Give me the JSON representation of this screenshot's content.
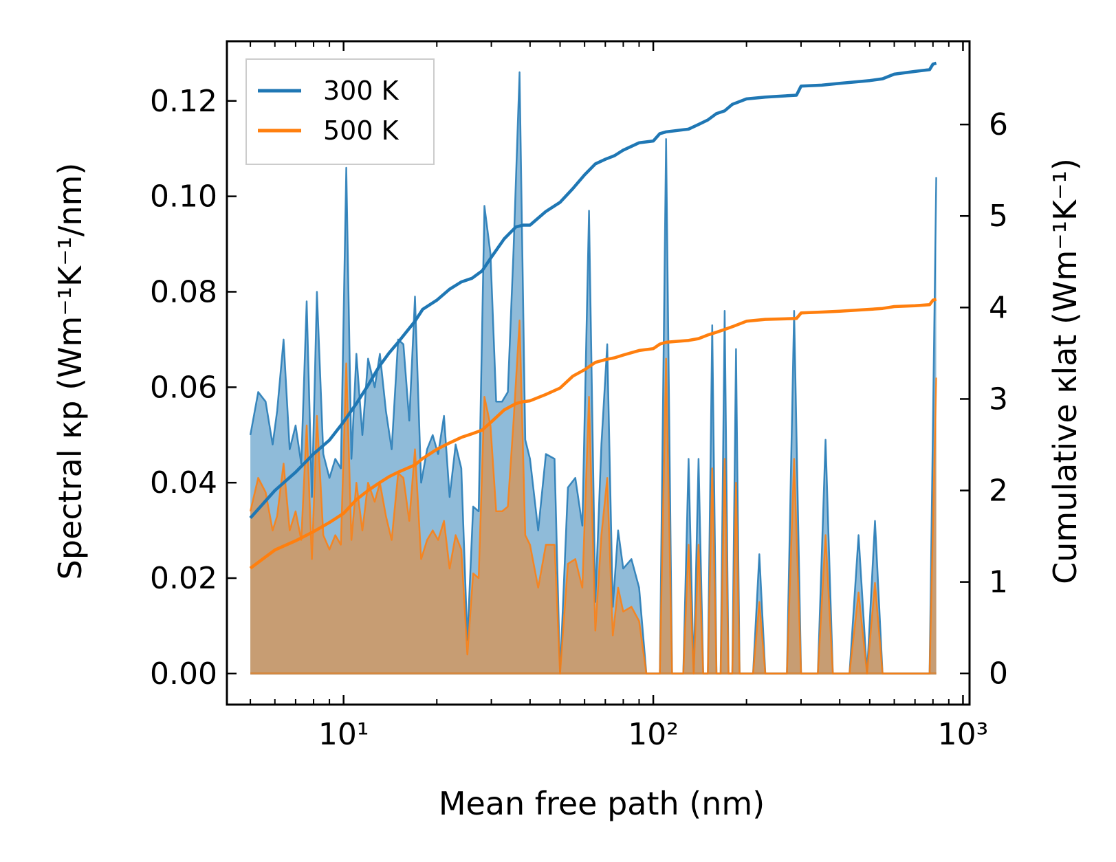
{
  "chart_data": {
    "type": "line",
    "xscale": "log",
    "xlim": [
      4.2,
      1050
    ],
    "ylim_left": [
      -0.0065,
      0.1325
    ],
    "ylim_right": [
      -0.34,
      6.91
    ],
    "xlabel": "Mean free path (nm)",
    "ylabel_left": "Spectral κp (Wm⁻¹K⁻¹/nm)",
    "ylabel_right": "Cumulative κlat (Wm⁻¹K⁻¹)",
    "xticks": [
      {
        "value": 10,
        "label": "10¹"
      },
      {
        "value": 100,
        "label": "10²"
      },
      {
        "value": 1000,
        "label": "10³"
      }
    ],
    "yticks_left": [
      {
        "value": 0.0,
        "label": "0.00"
      },
      {
        "value": 0.02,
        "label": "0.02"
      },
      {
        "value": 0.04,
        "label": "0.04"
      },
      {
        "value": 0.06,
        "label": "0.06"
      },
      {
        "value": 0.08,
        "label": "0.08"
      },
      {
        "value": 0.1,
        "label": "0.10"
      },
      {
        "value": 0.12,
        "label": "0.12"
      }
    ],
    "yticks_right": [
      {
        "value": 0,
        "label": "0"
      },
      {
        "value": 1,
        "label": "1"
      },
      {
        "value": 2,
        "label": "2"
      },
      {
        "value": 3,
        "label": "3"
      },
      {
        "value": 4,
        "label": "4"
      },
      {
        "value": 5,
        "label": "5"
      },
      {
        "value": 6,
        "label": "6"
      }
    ],
    "legend": {
      "position": "top-left",
      "entries": [
        "300 K",
        "500 K"
      ]
    },
    "colors": {
      "300 K": "#1f77b4",
      "500 K": "#ff7f0e",
      "axes": "#000000"
    },
    "spectral": {
      "x": [
        5.0,
        5.3,
        5.6,
        5.9,
        6.1,
        6.4,
        6.7,
        7.0,
        7.3,
        7.6,
        7.9,
        8.2,
        8.6,
        9.0,
        9.4,
        9.8,
        10.2,
        10.6,
        11.0,
        11.5,
        12.0,
        12.6,
        13.1,
        13.7,
        14.3,
        15.0,
        15.6,
        16.3,
        17.0,
        17.8,
        18.6,
        19.4,
        20.2,
        21.1,
        22.0,
        23.0,
        24.0,
        25.1,
        26.2,
        27.3,
        28.5,
        29.8,
        31.1,
        32.5,
        33.9,
        35.4,
        37.0,
        38.6,
        40.0,
        42.5,
        45.0,
        48.0,
        50.0,
        53.0,
        56.0,
        59.0,
        62.0,
        65.0,
        68.0,
        71.0,
        74.0,
        77.0,
        80.0,
        85.0,
        90.0,
        95.0,
        100.0,
        105.0,
        110.0,
        115.0,
        120.0,
        125.0,
        130.0,
        135.0,
        140.0,
        145.0,
        150.0,
        155.0,
        160.0,
        165.0,
        170.0,
        175.0,
        180.0,
        185.0,
        190.0,
        200.0,
        210.0,
        220.0,
        230.0,
        240.0,
        255.0,
        270.0,
        285.0,
        300.0,
        320.0,
        340.0,
        360.0,
        380.0,
        400.0,
        430.0,
        460.0,
        490.0,
        520.0,
        550.0,
        580.0,
        620.0,
        660.0,
        700.0,
        740.0,
        780.0,
        820.0
      ],
      "300 K": [
        0.05,
        0.059,
        0.057,
        0.048,
        0.055,
        0.07,
        0.047,
        0.052,
        0.044,
        0.078,
        0.037,
        0.08,
        0.046,
        0.041,
        0.045,
        0.043,
        0.106,
        0.045,
        0.067,
        0.05,
        0.066,
        0.06,
        0.067,
        0.055,
        0.047,
        0.07,
        0.069,
        0.053,
        0.079,
        0.04,
        0.047,
        0.05,
        0.046,
        0.054,
        0.037,
        0.048,
        0.043,
        0.007,
        0.035,
        0.034,
        0.098,
        0.088,
        0.057,
        0.057,
        0.059,
        0.089,
        0.126,
        0.049,
        0.045,
        0.03,
        0.046,
        0.045,
        0.0,
        0.039,
        0.041,
        0.031,
        0.097,
        0.015,
        0.048,
        0.069,
        0.014,
        0.03,
        0.022,
        0.024,
        0.018,
        0.0,
        0.0,
        0.0,
        0.112,
        0.0,
        0.0,
        0.0,
        0.045,
        0.0,
        0.045,
        0.0,
        0.0,
        0.073,
        0.0,
        0.0,
        0.076,
        0.0,
        0.0,
        0.068,
        0.0,
        0.0,
        0.0,
        0.025,
        0.0,
        0.0,
        0.0,
        0.0,
        0.076,
        0.0,
        0.0,
        0.0,
        0.049,
        0.0,
        0.0,
        0.0,
        0.029,
        0.0,
        0.032,
        0.0,
        0.0,
        0.0,
        0.0,
        0.0,
        0.0,
        0.0,
        0.104
      ],
      "500 K": [
        0.034,
        0.041,
        0.038,
        0.03,
        0.033,
        0.044,
        0.03,
        0.034,
        0.028,
        0.052,
        0.024,
        0.054,
        0.029,
        0.026,
        0.029,
        0.027,
        0.065,
        0.028,
        0.04,
        0.03,
        0.04,
        0.036,
        0.04,
        0.033,
        0.028,
        0.042,
        0.041,
        0.032,
        0.047,
        0.024,
        0.028,
        0.03,
        0.028,
        0.032,
        0.022,
        0.029,
        0.026,
        0.004,
        0.021,
        0.02,
        0.058,
        0.052,
        0.034,
        0.034,
        0.035,
        0.053,
        0.074,
        0.029,
        0.027,
        0.018,
        0.027,
        0.027,
        0.0,
        0.023,
        0.024,
        0.018,
        0.058,
        0.009,
        0.029,
        0.041,
        0.008,
        0.018,
        0.013,
        0.014,
        0.011,
        0.0,
        0.0,
        0.0,
        0.066,
        0.0,
        0.0,
        0.0,
        0.027,
        0.0,
        0.027,
        0.0,
        0.0,
        0.043,
        0.0,
        0.0,
        0.045,
        0.0,
        0.0,
        0.04,
        0.0,
        0.0,
        0.0,
        0.015,
        0.0,
        0.0,
        0.0,
        0.0,
        0.045,
        0.0,
        0.0,
        0.0,
        0.029,
        0.0,
        0.0,
        0.0,
        0.017,
        0.0,
        0.019,
        0.0,
        0.0,
        0.0,
        0.0,
        0.0,
        0.0,
        0.0,
        0.062
      ]
    },
    "cumulative": {
      "300 K": {
        "x": [
          5.0,
          6.0,
          7.0,
          8.0,
          9.0,
          10.0,
          11.0,
          12.0,
          13.0,
          14.0,
          15.0,
          17.0,
          18.0,
          20.0,
          22.0,
          24.0,
          26.0,
          28.0,
          30.0,
          33.0,
          36.0,
          38.0,
          40.0,
          45.0,
          50.0,
          55.0,
          60.0,
          65.0,
          70.0,
          75.0,
          80.0,
          90.0,
          100.0,
          105.0,
          110.0,
          130.0,
          140.0,
          150.0,
          160.0,
          170.0,
          180.0,
          200.0,
          230.0,
          290.0,
          300.0,
          350.0,
          400.0,
          500.0,
          550.0,
          600.0,
          700.0,
          780.0,
          800.0,
          820.0
        ],
        "y": [
          1.7,
          2.0,
          2.2,
          2.4,
          2.55,
          2.75,
          2.95,
          3.15,
          3.35,
          3.5,
          3.62,
          3.85,
          3.98,
          4.08,
          4.2,
          4.28,
          4.32,
          4.4,
          4.55,
          4.75,
          4.88,
          4.9,
          4.9,
          5.05,
          5.15,
          5.3,
          5.45,
          5.57,
          5.62,
          5.66,
          5.72,
          5.8,
          5.82,
          5.9,
          5.92,
          5.95,
          6.0,
          6.05,
          6.12,
          6.15,
          6.22,
          6.28,
          6.3,
          6.32,
          6.42,
          6.43,
          6.45,
          6.48,
          6.5,
          6.55,
          6.58,
          6.6,
          6.66,
          6.67
        ]
      },
      "500 K": {
        "x": [
          5.0,
          6.0,
          7.0,
          8.0,
          9.0,
          10.0,
          11.0,
          12.0,
          13.0,
          14.0,
          15.0,
          17.0,
          18.0,
          20.0,
          22.0,
          24.0,
          26.0,
          28.0,
          30.0,
          33.0,
          36.0,
          38.0,
          40.0,
          45.0,
          50.0,
          55.0,
          60.0,
          65.0,
          70.0,
          75.0,
          80.0,
          90.0,
          100.0,
          105.0,
          110.0,
          130.0,
          140.0,
          150.0,
          160.0,
          170.0,
          180.0,
          200.0,
          230.0,
          290.0,
          300.0,
          350.0,
          400.0,
          500.0,
          550.0,
          600.0,
          700.0,
          780.0,
          800.0,
          820.0
        ],
        "y": [
          1.15,
          1.35,
          1.45,
          1.55,
          1.65,
          1.75,
          1.9,
          2.0,
          2.08,
          2.15,
          2.2,
          2.28,
          2.35,
          2.45,
          2.52,
          2.58,
          2.62,
          2.66,
          2.75,
          2.88,
          2.95,
          2.97,
          2.98,
          3.05,
          3.12,
          3.25,
          3.32,
          3.4,
          3.43,
          3.45,
          3.48,
          3.53,
          3.55,
          3.6,
          3.62,
          3.64,
          3.66,
          3.7,
          3.73,
          3.76,
          3.79,
          3.85,
          3.87,
          3.88,
          3.94,
          3.95,
          3.96,
          3.98,
          3.99,
          4.01,
          4.02,
          4.03,
          4.08,
          4.09
        ]
      }
    }
  }
}
